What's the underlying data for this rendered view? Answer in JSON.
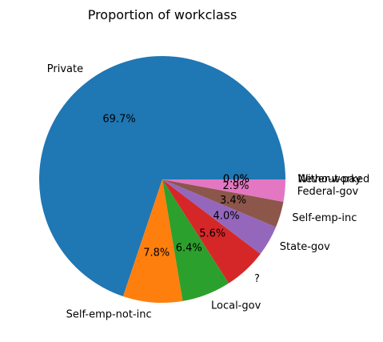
{
  "chart_data": {
    "type": "pie",
    "title": "Proportion of workclass",
    "labels": [
      "Private",
      "Self-emp-not-inc",
      "Local-gov",
      "?",
      "State-gov",
      "Self-emp-inc",
      "Federal-gov",
      "Without-pay",
      "Never-worked"
    ],
    "values": [
      69.7,
      7.8,
      6.4,
      5.6,
      4.0,
      3.4,
      2.9,
      0.0,
      0.0
    ],
    "percent_labels": [
      "69.7%",
      "7.8%",
      "6.4%",
      "5.6%",
      "4.0%",
      "3.4%",
      "2.9%",
      "0.0%",
      "0.0%"
    ],
    "colors": [
      "#1f77b4",
      "#ff7f0e",
      "#2ca02c",
      "#d62728",
      "#9467bd",
      "#8c564b",
      "#e377c2",
      "#7f7f7f",
      "#bcbd22"
    ],
    "start_angle": 0,
    "direction": "counterclockwise"
  }
}
